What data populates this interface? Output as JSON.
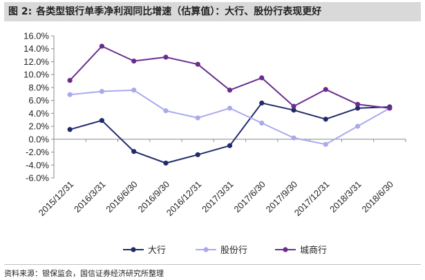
{
  "figure": {
    "number": "图 2:",
    "title": "各类型银行单季净利润同比增速（估算值）：大行、股份行表现更好",
    "source": "资料来源：银保监会，国信证券经济研究所整理"
  },
  "chart_data": {
    "type": "line",
    "title": "",
    "xlabel": "",
    "ylabel": "",
    "categories": [
      "2015/12/31",
      "2016/3/31",
      "2016/6/30",
      "2016/9/30",
      "2016/12/31",
      "2017/3/31",
      "2017/6/30",
      "2017/9/30",
      "2017/12/31",
      "2018/3/31",
      "2018/6/30"
    ],
    "ylim": [
      -6.0,
      16.0
    ],
    "ytick_step": 2.0,
    "ytick_format": "percent_1dp",
    "grid": false,
    "legend_position": "bottom",
    "series": [
      {
        "name": "大行",
        "color": "#1f2a6b",
        "values": [
          1.5,
          2.9,
          -1.9,
          -3.7,
          -2.4,
          -1.0,
          5.6,
          4.5,
          3.1,
          4.8,
          5.0
        ]
      },
      {
        "name": "股份行",
        "color": "#a9a9ee",
        "values": [
          6.9,
          7.4,
          7.6,
          4.4,
          3.3,
          4.8,
          2.5,
          0.2,
          -0.8,
          2.0,
          4.8
        ]
      },
      {
        "name": "城商行",
        "color": "#6a2c8e",
        "values": [
          9.1,
          14.4,
          12.1,
          12.7,
          11.6,
          7.6,
          9.5,
          5.1,
          7.7,
          5.4,
          4.8
        ]
      }
    ]
  }
}
